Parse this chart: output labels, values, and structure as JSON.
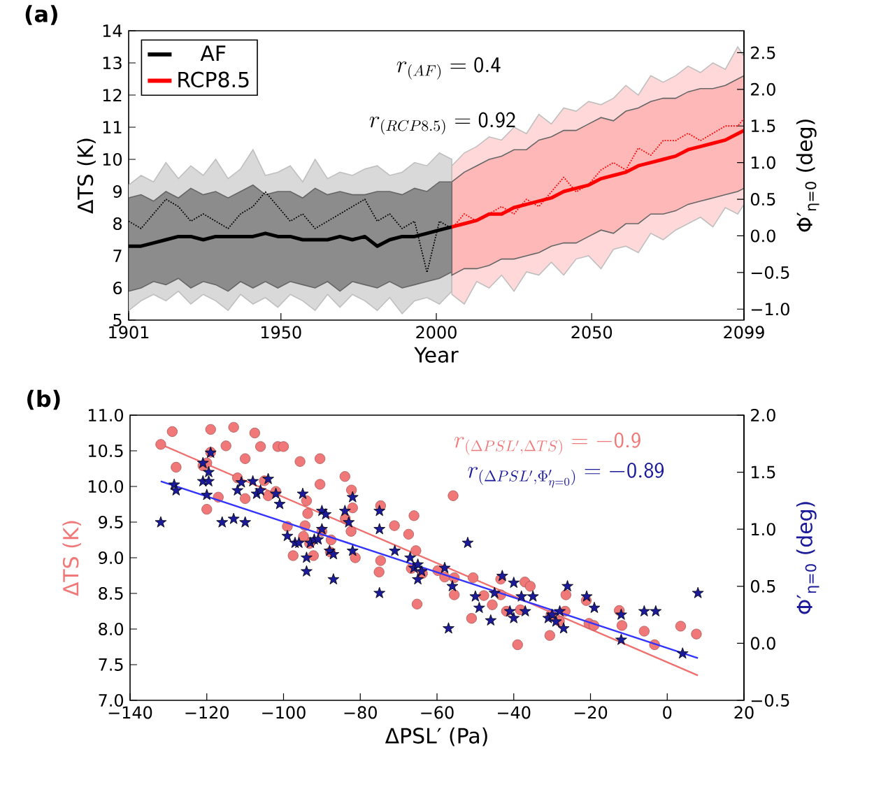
{
  "chart_data": [
    {
      "type": "line",
      "title": "(a)",
      "xlabel": "Year",
      "ylabel": "ΔTS (K)",
      "y2label": "Φ′$_{η=0}$ (deg)",
      "xlim": [
        1901,
        2099
      ],
      "xticks": [
        1901,
        1950,
        2000,
        2050,
        2099
      ],
      "ylim": [
        5,
        14
      ],
      "yticks": [
        5,
        6,
        7,
        8,
        9,
        10,
        11,
        12,
        13,
        14
      ],
      "y2lim": [
        -1.15,
        2.8
      ],
      "y2ticks": [
        {
          "value": -1.0,
          "label": "−1.0"
        },
        {
          "value": -0.5,
          "label": "−0.5"
        },
        {
          "value": 0.0,
          "label": "0.0"
        },
        {
          "value": 0.5,
          "label": "0.5"
        },
        {
          "value": 1.0,
          "label": "1.0"
        },
        {
          "value": 1.5,
          "label": "1.5"
        },
        {
          "value": 2.0,
          "label": "2.0"
        },
        {
          "value": 2.5,
          "label": "2.5"
        }
      ],
      "legend": "top left",
      "annotations": [
        "r_{(AF)} = \\mathsf{0.4}",
        "r_{(RCP8.5)} = \\mathsf{0.92}"
      ],
      "series": [
        {
          "color": "#000000",
          "x": [
            1901,
            1905,
            1909,
            1913,
            1917,
            1921,
            1925,
            1929,
            1933,
            1937,
            1941,
            1945,
            1949,
            1953,
            1957,
            1961,
            1965,
            1969,
            1973,
            1977,
            1981,
            1985,
            1989,
            1993,
            1997,
            2001,
            2005
          ],
          "values": [
            null,
            null,
            null,
            null,
            null,
            null,
            null,
            null,
            null,
            null,
            null,
            null,
            null,
            null,
            null,
            null,
            null,
            null,
            null,
            null,
            null,
            null,
            null,
            null,
            null,
            null,
            null
          ],
          "lower": [
            5.3,
            5.6,
            5.8,
            5.6,
            5.9,
            5.5,
            5.8,
            5.6,
            5.3,
            5.8,
            5.5,
            5.7,
            5.4,
            5.8,
            5.6,
            5.3,
            5.8,
            5.4,
            5.8,
            5.6,
            5.3,
            5.7,
            5.2,
            5.6,
            5.7,
            5.5,
            5.9
          ],
          "upper": [
            9.2,
            9.5,
            9.3,
            9.9,
            9.4,
            9.8,
            9.5,
            10.0,
            9.4,
            9.7,
            10.3,
            9.5,
            9.6,
            9.8,
            9.3,
            10.0,
            9.4,
            9.6,
            9.5,
            9.7,
            9.8,
            9.5,
            9.6,
            9.9,
            9.8,
            10.2,
            10.0
          ]
        },
        {
          "name": "AF",
          "color": "#000000",
          "x": [
            1901,
            1905,
            1909,
            1913,
            1917,
            1921,
            1925,
            1929,
            1933,
            1937,
            1941,
            1945,
            1949,
            1953,
            1957,
            1961,
            1965,
            1969,
            1973,
            1977,
            1981,
            1985,
            1989,
            1993,
            1997,
            2001,
            2005
          ],
          "values": [
            7.3,
            7.3,
            7.4,
            7.5,
            7.6,
            7.6,
            7.5,
            7.6,
            7.6,
            7.6,
            7.6,
            7.7,
            7.6,
            7.6,
            7.5,
            7.5,
            7.5,
            7.6,
            7.5,
            7.6,
            7.3,
            7.5,
            7.6,
            7.6,
            7.7,
            7.8,
            7.9
          ],
          "lower": [
            5.9,
            6.0,
            6.2,
            6.1,
            6.3,
            6.0,
            6.2,
            6.1,
            5.9,
            6.2,
            6.0,
            6.2,
            6.0,
            6.2,
            6.1,
            6.0,
            6.2,
            5.9,
            6.2,
            6.1,
            6.0,
            6.2,
            6.0,
            6.1,
            6.2,
            6.3,
            6.5
          ],
          "upper": [
            8.8,
            8.9,
            8.7,
            9.0,
            8.8,
            9.1,
            8.9,
            9.0,
            8.8,
            9.0,
            9.2,
            8.9,
            9.0,
            9.0,
            8.8,
            9.1,
            8.9,
            9.0,
            8.9,
            8.9,
            9.0,
            9.0,
            8.9,
            9.1,
            9.0,
            9.3,
            9.3
          ]
        },
        {
          "color": "#ff0000",
          "x": [
            2005,
            2009,
            2013,
            2017,
            2021,
            2025,
            2029,
            2033,
            2037,
            2041,
            2045,
            2049,
            2053,
            2057,
            2061,
            2065,
            2069,
            2073,
            2077,
            2081,
            2085,
            2089,
            2093,
            2097,
            2099
          ],
          "values": [
            null,
            null,
            null,
            null,
            null,
            null,
            null,
            null,
            null,
            null,
            null,
            null,
            null,
            null,
            null,
            null,
            null,
            null,
            null,
            null,
            null,
            null,
            null,
            null,
            null
          ],
          "lower": [
            5.8,
            5.5,
            6.2,
            6.0,
            6.4,
            5.9,
            6.5,
            6.4,
            6.8,
            6.4,
            6.9,
            7.0,
            6.6,
            7.2,
            7.3,
            7.1,
            7.7,
            7.5,
            7.8,
            8.0,
            8.2,
            7.9,
            8.5,
            8.3,
            8.6
          ],
          "upper": [
            9.8,
            10.2,
            10.4,
            10.7,
            10.6,
            11.0,
            10.8,
            11.4,
            11.1,
            11.6,
            11.5,
            11.8,
            11.7,
            11.9,
            12.3,
            12.0,
            12.6,
            12.4,
            12.6,
            12.9,
            12.7,
            13.0,
            12.8,
            13.5,
            13.2
          ]
        },
        {
          "name": "RCP8.5",
          "color": "#ff0000",
          "x": [
            2005,
            2009,
            2013,
            2017,
            2021,
            2025,
            2029,
            2033,
            2037,
            2041,
            2045,
            2049,
            2053,
            2057,
            2061,
            2065,
            2069,
            2073,
            2077,
            2081,
            2085,
            2089,
            2093,
            2097,
            2099
          ],
          "values": [
            7.9,
            8.0,
            8.1,
            8.3,
            8.3,
            8.5,
            8.6,
            8.7,
            8.8,
            9.0,
            9.1,
            9.2,
            9.4,
            9.5,
            9.6,
            9.8,
            9.9,
            10.0,
            10.1,
            10.3,
            10.4,
            10.5,
            10.6,
            10.8,
            10.9
          ],
          "lower": [
            6.4,
            6.6,
            6.6,
            6.7,
            6.9,
            6.9,
            7.0,
            7.1,
            7.3,
            7.4,
            7.4,
            7.6,
            7.8,
            7.7,
            8.0,
            8.0,
            8.3,
            8.3,
            8.4,
            8.6,
            8.7,
            8.8,
            8.9,
            9.0,
            9.1
          ],
          "upper": [
            9.3,
            9.6,
            9.8,
            10.0,
            10.1,
            10.3,
            10.3,
            10.6,
            10.7,
            10.9,
            10.9,
            11.1,
            11.3,
            11.2,
            11.5,
            11.6,
            11.8,
            11.9,
            11.9,
            12.1,
            12.2,
            12.2,
            12.3,
            12.5,
            12.6
          ]
        },
        {
          "color": "#000000",
          "axis": "y2",
          "line_style": "dotted",
          "x": [
            1901,
            1905,
            1909,
            1913,
            1917,
            1921,
            1925,
            1929,
            1933,
            1937,
            1941,
            1945,
            1949,
            1953,
            1957,
            1961,
            1965,
            1969,
            1973,
            1977,
            1981,
            1985,
            1989,
            1993,
            1997,
            2001,
            2005
          ],
          "values": [
            0.2,
            0.1,
            0.3,
            0.5,
            0.4,
            0.2,
            0.3,
            0.2,
            0.1,
            0.3,
            0.4,
            0.6,
            0.4,
            0.2,
            0.3,
            0.1,
            0.2,
            0.3,
            0.4,
            0.5,
            0.2,
            0.3,
            0.1,
            0.2,
            -0.5,
            0.2,
            0.1
          ]
        },
        {
          "color": "#ff0000",
          "axis": "y2",
          "line_style": "dotted",
          "x": [
            2005,
            2009,
            2013,
            2017,
            2021,
            2025,
            2029,
            2033,
            2037,
            2041,
            2045,
            2049,
            2053,
            2057,
            2061,
            2065,
            2069,
            2073,
            2077,
            2081,
            2085,
            2089,
            2093,
            2097,
            2099
          ],
          "values": [
            0.1,
            0.3,
            0.2,
            0.3,
            0.4,
            0.3,
            0.5,
            0.4,
            0.6,
            0.8,
            0.6,
            0.7,
            0.9,
            1.0,
            0.9,
            1.2,
            1.1,
            1.3,
            1.3,
            1.4,
            1.3,
            1.4,
            1.5,
            1.5,
            1.6
          ]
        }
      ]
    },
    {
      "type": "scatter",
      "title": "(b)",
      "xlabel": "ΔPSL′  (Pa)",
      "ylabel": "ΔTS (K)",
      "y2label": "Φ′$_{η=0}$ (deg)",
      "xlim": [
        -140,
        20
      ],
      "xticks": [
        {
          "value": -140,
          "label": "−140"
        },
        {
          "value": -120,
          "label": "−120"
        },
        {
          "value": -100,
          "label": "−100"
        },
        {
          "value": -80,
          "label": "−80"
        },
        {
          "value": -60,
          "label": "−60"
        },
        {
          "value": -40,
          "label": "−40"
        },
        {
          "value": -20,
          "label": "−20"
        },
        {
          "value": 0,
          "label": "0"
        },
        {
          "value": 20,
          "label": "20"
        }
      ],
      "ylim": [
        7,
        11
      ],
      "yticks": [
        {
          "value": 7.0,
          "label": "7.0"
        },
        {
          "value": 7.5,
          "label": "7.5"
        },
        {
          "value": 8.0,
          "label": "8.0"
        },
        {
          "value": 8.5,
          "label": "8.5"
        },
        {
          "value": 9.0,
          "label": "9.0"
        },
        {
          "value": 9.5,
          "label": "9.5"
        },
        {
          "value": 10.0,
          "label": "10.0"
        },
        {
          "value": 10.5,
          "label": "10.5"
        },
        {
          "value": 11.0,
          "label": "11.0"
        }
      ],
      "y2lim": [
        -0.5,
        2.0
      ],
      "y2ticks": [
        {
          "value": -0.5,
          "label": "−0.5"
        },
        {
          "value": 0.0,
          "label": "0.0"
        },
        {
          "value": 0.5,
          "label": "0.5"
        },
        {
          "value": 1.0,
          "label": "1.0"
        },
        {
          "value": 1.5,
          "label": "1.5"
        },
        {
          "value": 2.0,
          "label": "2.0"
        }
      ],
      "annotations": [
        "r_{(\\Delta PSL' ,\\Delta TS)} = \\mathsf{-0.9}",
        "r_{(\\Delta PSL' ,\\Phi'_{\\eta=0})} = \\mathsf{-0.89}"
      ],
      "series": [
        {
          "color": "#f07878",
          "marker": "circle",
          "x": [
            -132,
            -129,
            -128,
            -121,
            -119,
            -119,
            -120,
            -120,
            -117,
            -115,
            -113,
            -112,
            -110,
            -110,
            -107.5,
            -106,
            -105,
            -104,
            -101.5,
            -100,
            -102,
            -99,
            -97.5,
            -95.7,
            -94.4,
            -94,
            -93.7,
            -93.2,
            -94.8,
            -92.2,
            -90.5,
            -90.5,
            -90,
            -87.8,
            -87.6,
            -84,
            -83.9,
            -82.3,
            -82,
            -82.4,
            -81.3,
            -74.7,
            -75.1,
            -74.7,
            -71.1,
            -67.4,
            -66,
            -65.5,
            -65.2,
            -66.7,
            -63.8,
            -59.8,
            -58,
            -55.5,
            -55.5,
            -55.8,
            -50.6,
            -51,
            -47.8,
            -45.6,
            -43.4,
            -43.4,
            -41.9,
            -39,
            -38.3,
            -37.1,
            -35.7,
            -30.6,
            -30.3,
            -28.1,
            -26.6,
            -26.4,
            -21.1,
            -20.4,
            -19.1,
            -12.5,
            -11.8,
            -6,
            -3.3,
            3.5,
            7.6
          ],
          "values": [
            10.59,
            10.77,
            10.27,
            10.29,
            10.8,
            10.48,
            9.68,
            10.33,
            9.85,
            10.57,
            10.83,
            10.12,
            10.39,
            9.83,
            10.75,
            10.56,
            10.08,
            9.87,
            10.56,
            10.56,
            9.93,
            9.44,
            9.03,
            10.35,
            9.45,
            9.8,
            9.62,
            9.2,
            9.3,
            9.03,
            10.39,
            10.03,
            9.37,
            9.08,
            9.25,
            10.14,
            9.55,
            9.95,
            9.7,
            9.37,
            9.0,
            9.73,
            8.8,
            8.96,
            9.45,
            9.33,
            9.59,
            9.1,
            8.35,
            8.85,
            8.78,
            8.82,
            8.73,
            8.72,
            8.48,
            9.87,
            8.72,
            8.15,
            8.47,
            8.34,
            8.48,
            8.7,
            8.25,
            7.78,
            8.27,
            8.66,
            8.6,
            7.91,
            8.2,
            8.11,
            8.25,
            8.48,
            8.4,
            8.08,
            8.05,
            8.26,
            8.05,
            7.97,
            7.78,
            8.04,
            7.93
          ]
        },
        {
          "color": "#1a1a9a",
          "marker": "star",
          "axis": "y2",
          "x": [
            -132,
            -128.5,
            -128,
            -121,
            -121,
            -119.5,
            -119.5,
            -119,
            -120,
            -116,
            -113,
            -112,
            -111,
            -110,
            -108,
            -107,
            -106,
            -104,
            -102,
            -101,
            -99,
            -97,
            -96,
            -95,
            -94,
            -94,
            -93,
            -92,
            -91,
            -90,
            -90,
            -89,
            -88,
            -87,
            -87,
            -84,
            -83,
            -82,
            -82,
            -75,
            -75,
            -75,
            -71,
            -67,
            -66,
            -65,
            -65,
            -64,
            -58,
            -57,
            -56,
            -52,
            -50,
            -49,
            -46,
            -45,
            -43,
            -41,
            -40,
            -40,
            -38,
            -37,
            -35,
            -31,
            -30,
            -29,
            -28,
            -27,
            -26,
            -21,
            -19,
            -12,
            -12,
            -6,
            -3,
            4,
            8
          ],
          "values": [
            1.06,
            1.39,
            1.34,
            1.42,
            1.58,
            1.5,
            1.42,
            1.67,
            1.3,
            1.06,
            1.09,
            1.34,
            1.41,
            1.06,
            1.42,
            1.31,
            1.34,
            1.44,
            1.31,
            1.22,
            0.94,
            0.88,
            0.88,
            1.31,
            0.75,
            0.63,
            0.88,
            0.91,
            0.91,
            1.16,
            1.0,
            1.13,
            0.81,
            0.78,
            0.56,
            1.16,
            1.06,
            1.28,
            0.81,
            1.16,
            1.0,
            0.44,
            0.81,
            0.75,
            0.66,
            0.56,
            0.69,
            0.63,
            0.66,
            0.13,
            0.5,
            0.88,
            0.41,
            0.31,
            0.2,
            0.44,
            0.59,
            0.28,
            0.53,
            0.22,
            0.41,
            0.28,
            0.41,
            0.22,
            0.25,
            0.19,
            0.28,
            0.13,
            0.5,
            0.41,
            0.31,
            0.25,
            0.03,
            0.28,
            0.28,
            -0.09,
            0.44
          ]
        },
        {
          "type": "line",
          "color": "#f07070",
          "x": [
            -132,
            8
          ],
          "values": [
            10.59,
            7.35
          ]
        },
        {
          "type": "line",
          "color": "#3333ff",
          "axis": "y2",
          "x": [
            -132,
            8
          ],
          "values": [
            1.42,
            -0.13
          ]
        }
      ]
    }
  ]
}
